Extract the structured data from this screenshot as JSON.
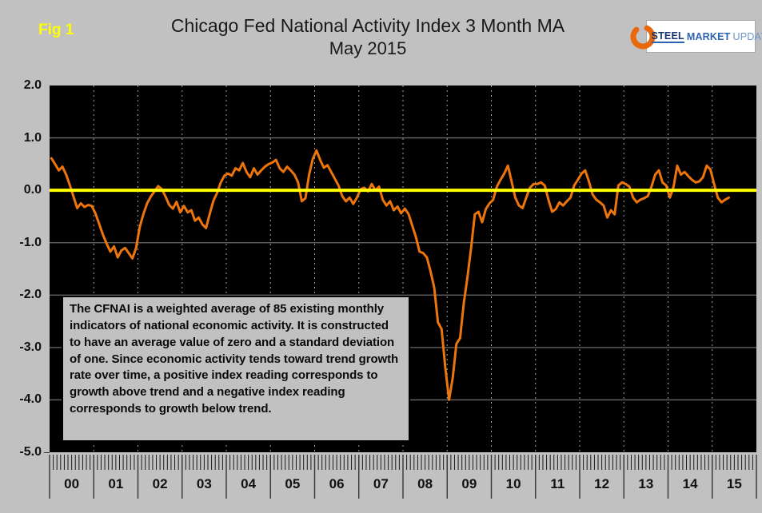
{
  "fig_label": "Fig 1",
  "title": "Chicago Fed National Activity Index 3 Month MA",
  "subtitle": "May 2015",
  "logo": {
    "word1": "STEEL",
    "word2": "MARKET",
    "word3": "UPDATE",
    "swoosh_color": "#E9680C"
  },
  "annotation": "The CFNAI is a weighted average of 85 existing monthly indicators of national economic activity. It is constructed to have an average value of zero and a standard deviation of one. Since economic activity tends toward trend growth rate over time, a positive index reading corresponds to growth above trend and a negative index reading corresponds to growth below trend.",
  "colors": {
    "background": "#c1c1c1",
    "plot_background": "#000000",
    "series_line": "#ED750C",
    "zero_line": "#FFFF00",
    "grid_horizontal": "#6b6b6b",
    "grid_vertical": "#9e9e9e",
    "axis_text": "#111111",
    "fig_label": "#FFFF00"
  },
  "chart_data": {
    "type": "line",
    "title": "Chicago Fed National Activity Index 3 Month MA",
    "subtitle": "May 2015",
    "xlabel": "",
    "ylabel": "",
    "ylim": [
      -5.0,
      2.0
    ],
    "y_tick_labels": [
      "2.0",
      "1.0",
      "0.0",
      "-1.0",
      "-2.0",
      "-3.0",
      "-4.0",
      "-5.0"
    ],
    "y_tick_values": [
      2.0,
      1.0,
      0.0,
      -1.0,
      -2.0,
      -3.0,
      -4.0,
      -5.0
    ],
    "x_tick_labels": [
      "00",
      "01",
      "02",
      "03",
      "04",
      "05",
      "06",
      "07",
      "08",
      "09",
      "10",
      "11",
      "12",
      "13",
      "14",
      "15"
    ],
    "x_axis_years_shown": 16,
    "x_minor_ticks": "monthly",
    "grid": {
      "horizontal": "solid",
      "vertical": "dashed-yearly"
    },
    "zero_reference_line": 0.0,
    "legend_position": "none",
    "series": [
      {
        "name": "Chicago Fed National Activity Index 3 Month MA",
        "x_start": "2000-01",
        "x_end": "2015-05",
        "frequency": "monthly",
        "values": [
          0.61,
          0.5,
          0.38,
          0.45,
          0.3,
          0.1,
          -0.12,
          -0.34,
          -0.25,
          -0.32,
          -0.28,
          -0.3,
          -0.45,
          -0.65,
          -0.85,
          -1.02,
          -1.17,
          -1.07,
          -1.28,
          -1.15,
          -1.1,
          -1.2,
          -1.3,
          -1.1,
          -0.7,
          -0.45,
          -0.25,
          -0.12,
          -0.02,
          0.08,
          0.02,
          -0.12,
          -0.28,
          -0.35,
          -0.22,
          -0.42,
          -0.3,
          -0.42,
          -0.38,
          -0.58,
          -0.52,
          -0.65,
          -0.72,
          -0.45,
          -0.2,
          -0.05,
          0.15,
          0.28,
          0.32,
          0.28,
          0.42,
          0.38,
          0.52,
          0.35,
          0.25,
          0.42,
          0.3,
          0.38,
          0.45,
          0.5,
          0.53,
          0.58,
          0.42,
          0.35,
          0.45,
          0.38,
          0.3,
          0.15,
          -0.21,
          -0.15,
          0.3,
          0.6,
          0.76,
          0.58,
          0.43,
          0.48,
          0.35,
          0.22,
          0.09,
          -0.11,
          -0.21,
          -0.14,
          -0.26,
          -0.14,
          0.02,
          0.05,
          -0.02,
          0.12,
          0.0,
          0.07,
          -0.18,
          -0.29,
          -0.21,
          -0.38,
          -0.31,
          -0.44,
          -0.35,
          -0.45,
          -0.67,
          -0.89,
          -1.17,
          -1.2,
          -1.28,
          -1.55,
          -1.86,
          -2.52,
          -2.65,
          -3.38,
          -4.0,
          -3.58,
          -2.93,
          -2.82,
          -2.16,
          -1.66,
          -1.1,
          -0.46,
          -0.41,
          -0.61,
          -0.36,
          -0.25,
          -0.18,
          0.07,
          0.2,
          0.32,
          0.47,
          0.17,
          -0.14,
          -0.29,
          -0.34,
          -0.14,
          0.05,
          0.12,
          0.12,
          0.15,
          0.09,
          -0.18,
          -0.41,
          -0.36,
          -0.23,
          -0.29,
          -0.21,
          -0.14,
          0.09,
          0.2,
          0.32,
          0.38,
          0.17,
          -0.08,
          -0.18,
          -0.23,
          -0.29,
          -0.52,
          -0.38,
          -0.46,
          0.09,
          0.15,
          0.12,
          0.07,
          -0.14,
          -0.23,
          -0.18,
          -0.15,
          -0.11,
          0.07,
          0.3,
          0.38,
          0.15,
          0.09,
          -0.14,
          0.07,
          0.47,
          0.3,
          0.35,
          0.27,
          0.2,
          0.15,
          0.17,
          0.25,
          0.47,
          0.4,
          0.12,
          -0.14,
          -0.23,
          -0.18,
          -0.14
        ]
      }
    ]
  }
}
